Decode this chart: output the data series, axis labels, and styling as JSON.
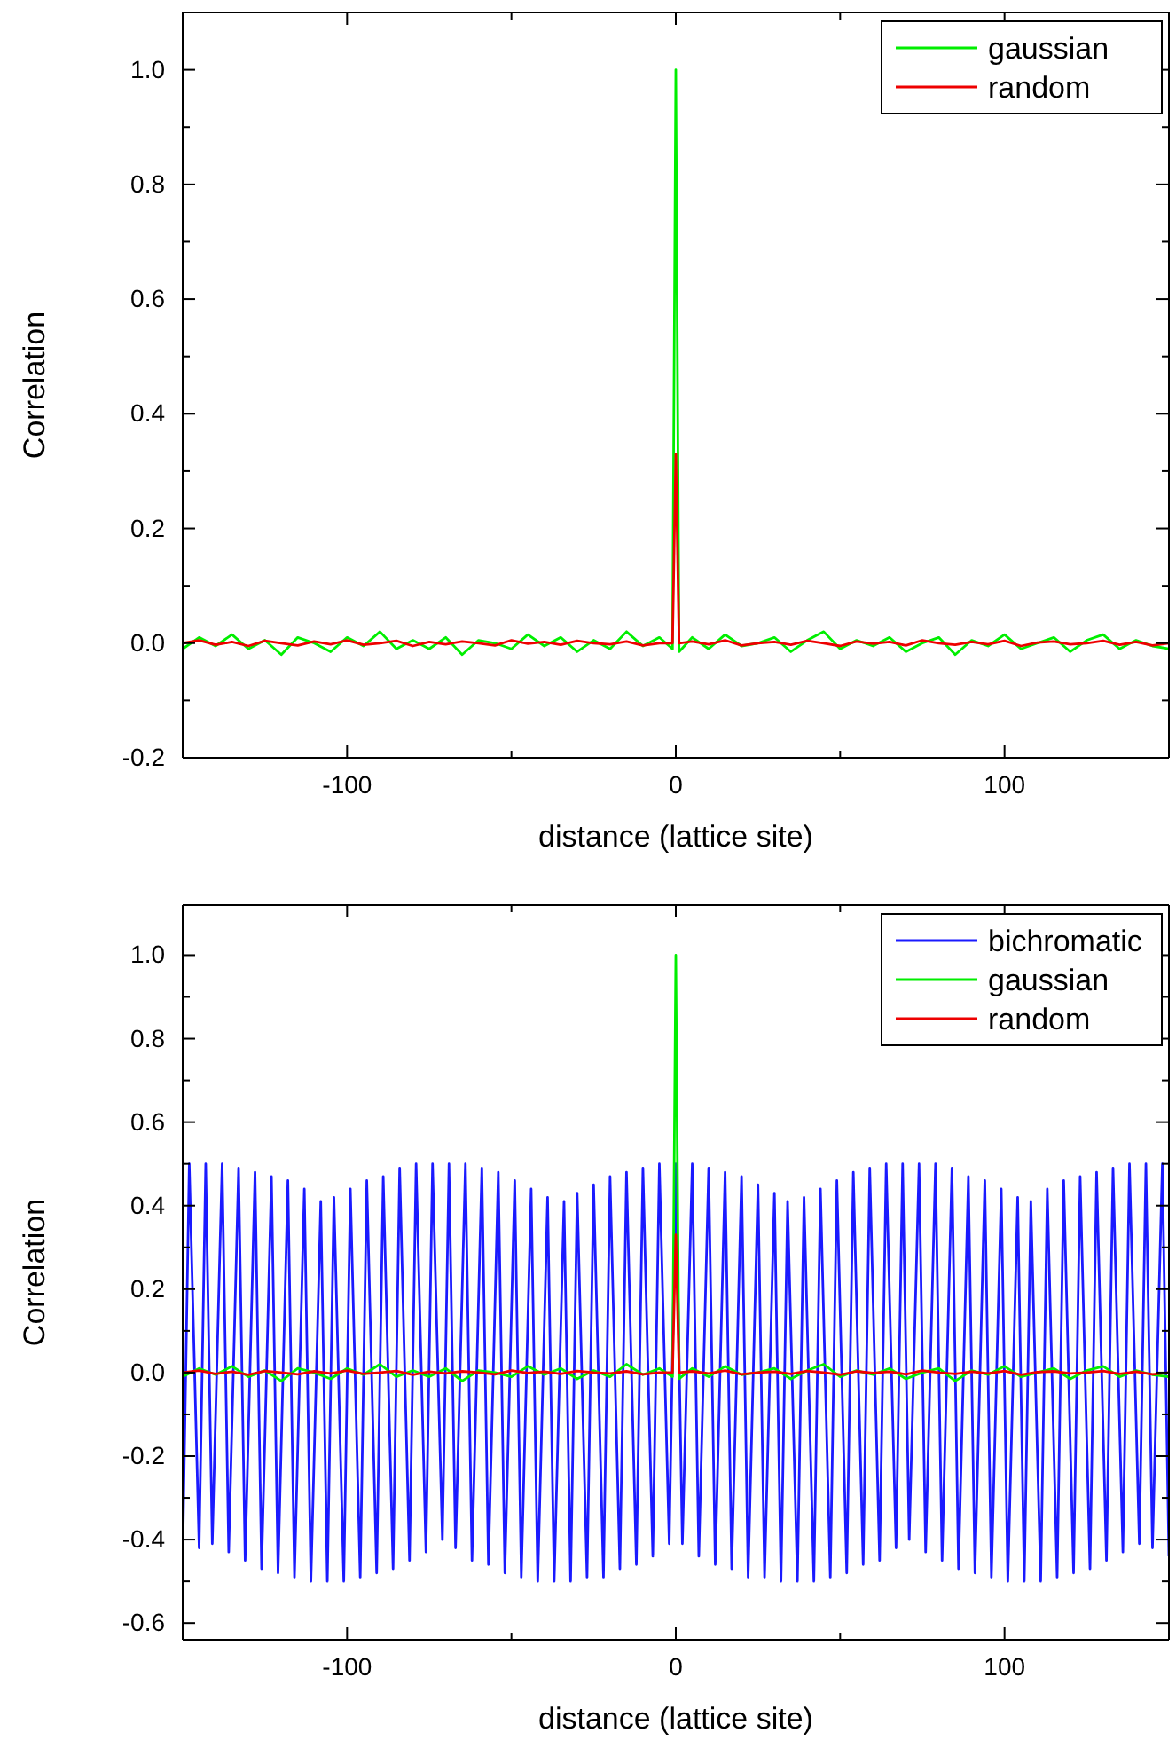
{
  "chart_data": [
    {
      "type": "line",
      "xlabel": "distance (lattice site)",
      "ylabel": "Correlation",
      "xlim": [
        -150,
        150
      ],
      "xticks": [
        {
          "value": -150,
          "label": null
        },
        -100,
        {
          "value": -50,
          "label": null
        },
        0,
        {
          "value": 50,
          "label": null
        },
        100,
        {
          "value": 150,
          "label": null
        }
      ],
      "ylim": [
        -0.2,
        1.1
      ],
      "yticks": [
        {
          "value": -0.2,
          "label": "-0.2"
        },
        {
          "value": -0.1,
          "label": null
        },
        {
          "value": 0,
          "label": "0.0"
        },
        {
          "value": 0.1,
          "label": null
        },
        {
          "value": 0.2,
          "label": "0.2"
        },
        {
          "value": 0.3,
          "label": null
        },
        {
          "value": 0.4,
          "label": "0.4"
        },
        {
          "value": 0.5,
          "label": null
        },
        {
          "value": 0.6,
          "label": "0.6"
        },
        {
          "value": 0.7,
          "label": null
        },
        {
          "value": 0.8,
          "label": "0.8"
        },
        {
          "value": 0.9,
          "label": null
        },
        {
          "value": 1,
          "label": "1.0"
        }
      ],
      "grid": false,
      "legend": "top right",
      "series": [
        {
          "name": "gaussian",
          "color": "#00ee00",
          "x": [
            -150,
            -145,
            -140,
            -135,
            -130,
            -125,
            -120,
            -115,
            -110,
            -105,
            -100,
            -95,
            -90,
            -85,
            -80,
            -75,
            -70,
            -65,
            -60,
            -55,
            -50,
            -45,
            -40,
            -35,
            -30,
            -25,
            -20,
            -15,
            -10,
            -5,
            -1,
            0,
            1,
            5,
            10,
            15,
            20,
            25,
            30,
            35,
            40,
            45,
            50,
            55,
            60,
            65,
            70,
            75,
            80,
            85,
            90,
            95,
            100,
            105,
            110,
            115,
            120,
            125,
            130,
            135,
            140,
            145,
            150
          ],
          "values": [
            -0.01,
            0.01,
            -0.005,
            0.015,
            -0.01,
            0.005,
            -0.02,
            0.01,
            0.0,
            -0.015,
            0.01,
            -0.005,
            0.02,
            -0.01,
            0.005,
            -0.01,
            0.01,
            -0.02,
            0.005,
            0.0,
            -0.01,
            0.015,
            -0.005,
            0.01,
            -0.015,
            0.005,
            -0.01,
            0.02,
            -0.005,
            0.01,
            -0.01,
            1.0,
            -0.015,
            0.01,
            -0.01,
            0.015,
            -0.005,
            0.0,
            0.01,
            -0.015,
            0.005,
            0.02,
            -0.01,
            0.005,
            -0.005,
            0.01,
            -0.015,
            0.0,
            0.01,
            -0.02,
            0.005,
            -0.005,
            0.015,
            -0.01,
            0.0,
            0.01,
            -0.015,
            0.005,
            0.015,
            -0.01,
            0.005,
            -0.005,
            -0.01
          ]
        },
        {
          "name": "random",
          "color": "#ee0000",
          "x": [
            -150,
            -145,
            -140,
            -135,
            -130,
            -125,
            -120,
            -115,
            -110,
            -105,
            -100,
            -95,
            -90,
            -85,
            -80,
            -75,
            -70,
            -65,
            -60,
            -55,
            -50,
            -45,
            -40,
            -35,
            -30,
            -25,
            -20,
            -15,
            -10,
            -5,
            -1,
            0,
            1,
            5,
            10,
            15,
            20,
            25,
            30,
            35,
            40,
            45,
            50,
            55,
            60,
            65,
            70,
            75,
            80,
            85,
            90,
            95,
            100,
            105,
            110,
            115,
            120,
            125,
            130,
            135,
            140,
            145,
            150
          ],
          "values": [
            0.0,
            0.005,
            -0.003,
            0.002,
            -0.005,
            0.004,
            0.0,
            -0.004,
            0.003,
            -0.002,
            0.005,
            -0.003,
            0.0,
            0.004,
            -0.005,
            0.002,
            -0.002,
            0.003,
            0.0,
            -0.004,
            0.005,
            -0.001,
            0.002,
            -0.003,
            0.004,
            0.0,
            -0.002,
            0.003,
            -0.004,
            0.0,
            0.0,
            0.33,
            0.0,
            0.003,
            -0.002,
            0.005,
            -0.004,
            0.0,
            0.002,
            -0.003,
            0.004,
            0.0,
            -0.005,
            0.003,
            -0.001,
            0.002,
            -0.004,
            0.005,
            0.0,
            -0.003,
            0.002,
            -0.002,
            0.004,
            -0.005,
            0.001,
            0.003,
            -0.002,
            0.0,
            0.004,
            -0.003,
            0.002,
            -0.004,
            0.0
          ]
        }
      ]
    },
    {
      "type": "line",
      "xlabel": "distance (lattice site)",
      "ylabel": "Correlation",
      "xlim": [
        -150,
        150
      ],
      "xticks": [
        {
          "value": -150,
          "label": null
        },
        -100,
        {
          "value": -50,
          "label": null
        },
        0,
        {
          "value": 50,
          "label": null
        },
        100,
        {
          "value": 150,
          "label": null
        }
      ],
      "ylim": [
        -0.64,
        1.12
      ],
      "yticks": [
        {
          "value": -0.6,
          "label": "-0.6"
        },
        {
          "value": -0.5,
          "label": null
        },
        {
          "value": -0.4,
          "label": "-0.4"
        },
        {
          "value": -0.3,
          "label": null
        },
        {
          "value": -0.2,
          "label": "-0.2"
        },
        {
          "value": -0.1,
          "label": null
        },
        {
          "value": 0,
          "label": "0.0"
        },
        {
          "value": 0.1,
          "label": null
        },
        {
          "value": 0.2,
          "label": "0.2"
        },
        {
          "value": 0.3,
          "label": null
        },
        {
          "value": 0.4,
          "label": "0.4"
        },
        {
          "value": 0.5,
          "label": null
        },
        {
          "value": 0.6,
          "label": "0.6"
        },
        {
          "value": 0.7,
          "label": null
        },
        {
          "value": 0.8,
          "label": "0.8"
        },
        {
          "value": 0.9,
          "label": null
        },
        {
          "value": 1,
          "label": "1.0"
        }
      ],
      "grid": false,
      "legend": "top right",
      "series": [
        {
          "name": "bichromatic",
          "color": "#1a1aff",
          "x": [
            -150,
            -148,
            -145,
            -143,
            -141,
            -138,
            -136,
            -133,
            -131,
            -128,
            -126,
            -123,
            -121,
            -118,
            -116,
            -113,
            -111,
            -108,
            -106,
            -104,
            -101,
            -99,
            -96,
            -94,
            -91,
            -89,
            -86,
            -84,
            -81,
            -79,
            -76,
            -74,
            -71,
            -69,
            -67,
            -64,
            -62,
            -59,
            -57,
            -54,
            -52,
            -49,
            -47,
            -44,
            -42,
            -39,
            -37,
            -34,
            -32,
            -30,
            -27,
            -25,
            -22,
            -20,
            -17,
            -15,
            -12,
            -10,
            -7,
            -5,
            -2,
            0,
            2,
            5,
            7,
            10,
            12,
            15,
            17,
            20,
            22,
            25,
            27,
            30,
            32,
            34,
            37,
            39,
            42,
            44,
            47,
            49,
            52,
            54,
            57,
            59,
            62,
            64,
            67,
            69,
            71,
            74,
            76,
            79,
            81,
            84,
            86,
            89,
            91,
            94,
            96,
            99,
            101,
            104,
            106,
            108,
            111,
            113,
            116,
            118,
            121,
            123,
            126,
            128,
            131,
            133,
            136,
            138,
            141,
            143,
            145,
            148,
            150
          ],
          "values": [
            -0.44,
            0.5,
            -0.42,
            0.5,
            -0.41,
            0.5,
            -0.43,
            0.49,
            -0.45,
            0.48,
            -0.47,
            0.47,
            -0.48,
            0.46,
            -0.49,
            0.44,
            -0.5,
            0.41,
            -0.5,
            0.42,
            -0.5,
            0.44,
            -0.49,
            0.46,
            -0.48,
            0.47,
            -0.47,
            0.49,
            -0.45,
            0.5,
            -0.43,
            0.5,
            -0.4,
            0.5,
            -0.42,
            0.5,
            -0.45,
            0.49,
            -0.46,
            0.48,
            -0.48,
            0.46,
            -0.49,
            0.44,
            -0.5,
            0.42,
            -0.5,
            0.41,
            -0.5,
            0.43,
            -0.49,
            0.45,
            -0.49,
            0.47,
            -0.47,
            0.48,
            -0.46,
            0.49,
            -0.44,
            0.5,
            -0.41,
            0.5,
            -0.41,
            0.5,
            -0.44,
            0.49,
            -0.46,
            0.48,
            -0.47,
            0.47,
            -0.49,
            0.45,
            -0.49,
            0.43,
            -0.5,
            0.41,
            -0.5,
            0.42,
            -0.5,
            0.44,
            -0.49,
            0.46,
            -0.48,
            0.48,
            -0.46,
            0.49,
            -0.45,
            0.5,
            -0.42,
            0.5,
            -0.4,
            0.5,
            -0.43,
            0.5,
            -0.45,
            0.49,
            -0.47,
            0.47,
            -0.48,
            0.46,
            -0.49,
            0.44,
            -0.5,
            0.42,
            -0.5,
            0.41,
            -0.5,
            0.44,
            -0.49,
            0.46,
            -0.48,
            0.47,
            -0.47,
            0.48,
            -0.45,
            0.49,
            -0.43,
            0.5,
            -0.41,
            0.5,
            -0.42,
            0.5,
            -0.44
          ]
        },
        {
          "name": "gaussian",
          "color": "#00ee00",
          "x": [
            -150,
            -145,
            -140,
            -135,
            -130,
            -125,
            -120,
            -115,
            -110,
            -105,
            -100,
            -95,
            -90,
            -85,
            -80,
            -75,
            -70,
            -65,
            -60,
            -55,
            -50,
            -45,
            -40,
            -35,
            -30,
            -25,
            -20,
            -15,
            -10,
            -5,
            -1,
            0,
            1,
            5,
            10,
            15,
            20,
            25,
            30,
            35,
            40,
            45,
            50,
            55,
            60,
            65,
            70,
            75,
            80,
            85,
            90,
            95,
            100,
            105,
            110,
            115,
            120,
            125,
            130,
            135,
            140,
            145,
            150
          ],
          "values": [
            -0.01,
            0.01,
            -0.005,
            0.015,
            -0.01,
            0.005,
            -0.02,
            0.01,
            0.0,
            -0.015,
            0.01,
            -0.005,
            0.02,
            -0.01,
            0.005,
            -0.01,
            0.01,
            -0.02,
            0.005,
            0.0,
            -0.01,
            0.015,
            -0.005,
            0.01,
            -0.015,
            0.005,
            -0.01,
            0.02,
            -0.005,
            0.01,
            -0.01,
            1.0,
            -0.015,
            0.01,
            -0.01,
            0.015,
            -0.005,
            0.0,
            0.01,
            -0.015,
            0.005,
            0.02,
            -0.01,
            0.005,
            -0.005,
            0.01,
            -0.015,
            0.0,
            0.01,
            -0.02,
            0.005,
            -0.005,
            0.015,
            -0.01,
            0.0,
            0.01,
            -0.015,
            0.005,
            0.015,
            -0.01,
            0.005,
            -0.005,
            -0.01
          ]
        },
        {
          "name": "random",
          "color": "#ee0000",
          "x": [
            -150,
            -145,
            -140,
            -135,
            -130,
            -125,
            -120,
            -115,
            -110,
            -105,
            -100,
            -95,
            -90,
            -85,
            -80,
            -75,
            -70,
            -65,
            -60,
            -55,
            -50,
            -45,
            -40,
            -35,
            -30,
            -25,
            -20,
            -15,
            -10,
            -5,
            -1,
            0,
            1,
            5,
            10,
            15,
            20,
            25,
            30,
            35,
            40,
            45,
            50,
            55,
            60,
            65,
            70,
            75,
            80,
            85,
            90,
            95,
            100,
            105,
            110,
            115,
            120,
            125,
            130,
            135,
            140,
            145,
            150
          ],
          "values": [
            0.0,
            0.005,
            -0.003,
            0.002,
            -0.005,
            0.004,
            0.0,
            -0.004,
            0.003,
            -0.002,
            0.005,
            -0.003,
            0.0,
            0.004,
            -0.005,
            0.002,
            -0.002,
            0.003,
            0.0,
            -0.004,
            0.005,
            -0.001,
            0.002,
            -0.003,
            0.004,
            0.0,
            -0.002,
            0.003,
            -0.004,
            0.0,
            0.0,
            0.33,
            0.0,
            0.003,
            -0.002,
            0.005,
            -0.004,
            0.0,
            0.002,
            -0.003,
            0.004,
            0.0,
            -0.005,
            0.003,
            -0.001,
            0.002,
            -0.004,
            0.005,
            0.0,
            -0.003,
            0.002,
            -0.002,
            0.004,
            -0.005,
            0.001,
            0.003,
            -0.002,
            0.0,
            0.004,
            -0.003,
            0.002,
            -0.004,
            0.0
          ]
        }
      ]
    }
  ]
}
